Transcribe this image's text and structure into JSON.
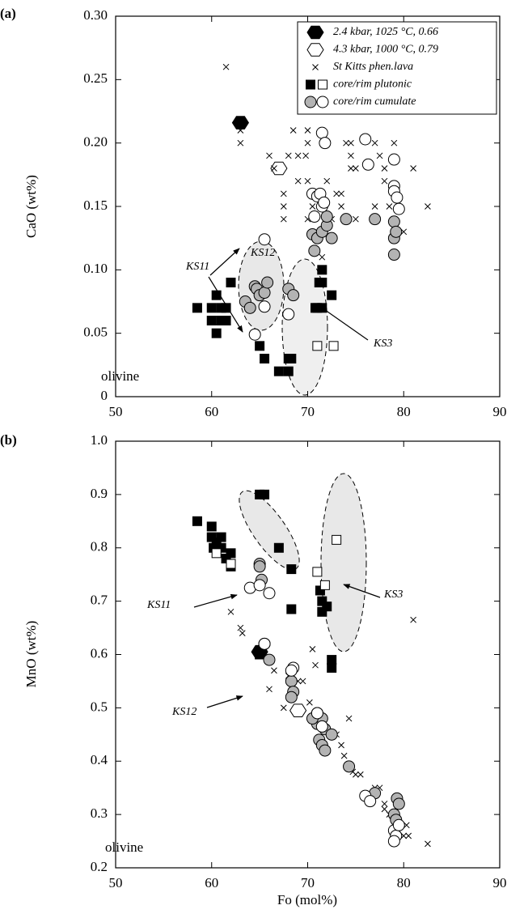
{
  "chart_data": [
    {
      "type": "scatter",
      "panel_label": "(a)",
      "ylabel": "CaO (wt%)",
      "xlim": [
        50,
        90
      ],
      "xticks": [
        50,
        60,
        70,
        80,
        90
      ],
      "ylim": [
        0,
        0.3
      ],
      "yticks": [
        0,
        0.05,
        {
          "value": 0.1,
          "label": "0.10"
        },
        0.15,
        {
          "value": 0.2,
          "label": "0.20"
        },
        0.25,
        {
          "value": 0.3,
          "label": "0.30"
        }
      ],
      "annotations": [
        "olivine",
        "KS11",
        "KS12",
        "KS3"
      ],
      "series": [
        {
          "name": "2.4 kbar, 1025 °C, 0.66",
          "marker": "hexagon",
          "fill": "#000000",
          "x": [
            63
          ],
          "values": [
            0.216
          ]
        },
        {
          "name": "4.3 kbar, 1000 °C, 0.79",
          "marker": "hexagon",
          "fill": "#ffffff",
          "x": [
            67
          ],
          "values": [
            0.18
          ]
        },
        {
          "name": "St Kitts phen.lava",
          "marker": "x",
          "fill": "#000000",
          "x": [
            61.5,
            63,
            63,
            66,
            66.5,
            67.5,
            67.5,
            67.5,
            68.5,
            68,
            69,
            69,
            70,
            70,
            69.8,
            70,
            70.3,
            70.5,
            70,
            72,
            72.5,
            73,
            73.5,
            73.5,
            74,
            74.5,
            74.5,
            74.5,
            75,
            75,
            77,
            77,
            77.5,
            78,
            78,
            78.5,
            79,
            79,
            80,
            81,
            82.5,
            71.5
          ],
          "values": [
            0.26,
            0.21,
            0.2,
            0.19,
            0.18,
            0.16,
            0.15,
            0.14,
            0.21,
            0.19,
            0.19,
            0.17,
            0.21,
            0.2,
            0.19,
            0.17,
            0.16,
            0.15,
            0.14,
            0.17,
            0.14,
            0.16,
            0.16,
            0.15,
            0.2,
            0.2,
            0.19,
            0.18,
            0.18,
            0.14,
            0.2,
            0.15,
            0.19,
            0.18,
            0.17,
            0.15,
            0.2,
            0.14,
            0.13,
            0.18,
            0.15,
            0.11
          ]
        },
        {
          "name": "core/rim plutonic",
          "parts": [
            {
              "marker": "square",
              "fill": "#000000",
              "x": [
                58.5,
                60,
                60,
                60.5,
                60.5,
                61,
                61,
                61.5,
                61.5,
                62,
                65,
                65.5,
                67,
                68,
                68.3,
                68,
                71,
                71.2,
                71.5,
                71.5,
                71.5,
                72.5,
                70.8
              ],
              "values": [
                0.07,
                0.07,
                0.06,
                0.08,
                0.05,
                0.07,
                0.06,
                0.06,
                0.07,
                0.09,
                0.04,
                0.03,
                0.02,
                0.03,
                0.03,
                0.02,
                0.07,
                0.09,
                0.1,
                0.09,
                0.07,
                0.08,
                0.07
              ]
            },
            {
              "marker": "square",
              "fill": "#ffffff",
              "x": [
                71,
                72.7
              ],
              "values": [
                0.04,
                0.04
              ]
            }
          ]
        },
        {
          "name": "core/rim cumulate",
          "parts": [
            {
              "marker": "circle",
              "fill": "#b3b3b3",
              "x": [
                63.5,
                64,
                64.5,
                64.7,
                65,
                65.5,
                65.8,
                68,
                68.5,
                70.5,
                71,
                71.5,
                72,
                72,
                72.5,
                74,
                77,
                79,
                79,
                79.2,
                79,
                70.7
              ],
              "values": [
                0.075,
                0.07,
                0.087,
                0.085,
                0.08,
                0.082,
                0.09,
                0.085,
                0.08,
                0.128,
                0.125,
                0.13,
                0.135,
                0.142,
                0.125,
                0.14,
                0.14,
                0.138,
                0.125,
                0.13,
                0.112,
                0.115
              ]
            },
            {
              "marker": "circle",
              "fill": "#ffffff",
              "x": [
                64.5,
                65.5,
                65.5,
                68,
                70.5,
                70.7,
                71,
                71.3,
                71.5,
                71.8,
                71.5,
                71.7,
                76,
                76.3,
                79,
                79,
                79,
                79.3,
                79.5
              ],
              "values": [
                0.049,
                0.071,
                0.124,
                0.065,
                0.16,
                0.142,
                0.158,
                0.16,
                0.208,
                0.2,
                0.15,
                0.153,
                0.203,
                0.183,
                0.187,
                0.166,
                0.162,
                0.157,
                0.148
              ]
            }
          ]
        }
      ]
    },
    {
      "type": "scatter",
      "panel_label": "(b)",
      "ylabel": "MnO (wt%)",
      "xlabel": "Fo (mol%)",
      "xlim": [
        50,
        90
      ],
      "xticks": [
        50,
        60,
        70,
        80,
        90
      ],
      "ylim": [
        0.2,
        1.0
      ],
      "yticks": [
        0.2,
        0.3,
        0.4,
        0.5,
        0.6,
        0.7,
        0.8,
        0.9,
        {
          "value": 1.0,
          "label": "1.0"
        }
      ],
      "annotations": [
        "olivine",
        "KS11",
        "KS12",
        "KS3"
      ],
      "series": [
        {
          "marker": "hexagon",
          "fill": "#000000",
          "x": [
            65
          ],
          "values": [
            0.605
          ]
        },
        {
          "marker": "hexagon",
          "fill": "#ffffff",
          "x": [
            69
          ],
          "values": [
            0.495
          ]
        },
        {
          "marker": "x",
          "fill": "#000000",
          "x": [
            62,
            63,
            63.2,
            66,
            66.5,
            67.5,
            68,
            68.5,
            69,
            69.5,
            70.2,
            70.5,
            70.8,
            72,
            73,
            73.5,
            73.8,
            74.3,
            74.7,
            75,
            75.5,
            77,
            77.5,
            78,
            78,
            78.5,
            80,
            80.3,
            80.5,
            81,
            82.5
          ],
          "values": [
            0.68,
            0.65,
            0.64,
            0.535,
            0.57,
            0.5,
            0.56,
            0.54,
            0.55,
            0.55,
            0.51,
            0.61,
            0.58,
            0.46,
            0.45,
            0.43,
            0.41,
            0.48,
            0.38,
            0.375,
            0.375,
            0.35,
            0.35,
            0.32,
            0.31,
            0.3,
            0.26,
            0.28,
            0.26,
            0.665,
            0.245
          ]
        },
        {
          "parts": [
            {
              "marker": "square",
              "fill": "#000000",
              "x": [
                58.5,
                60,
                60,
                60.2,
                60.5,
                61,
                61,
                61.5,
                62,
                62,
                62,
                65,
                65.5,
                67,
                68.3,
                68.3,
                71.3,
                71.5,
                71.5,
                72,
                72.5,
                72.5,
                65
              ],
              "values": [
                0.85,
                0.84,
                0.82,
                0.8,
                0.81,
                0.82,
                0.8,
                0.78,
                0.79,
                0.77,
                0.765,
                0.9,
                0.9,
                0.8,
                0.76,
                0.685,
                0.72,
                0.7,
                0.68,
                0.69,
                0.59,
                0.575,
                0.6
              ]
            },
            {
              "marker": "square",
              "fill": "#ffffff",
              "x": [
                60.5,
                62,
                71,
                71.8,
                73
              ],
              "values": [
                0.79,
                0.77,
                0.755,
                0.73,
                0.815
              ]
            }
          ]
        },
        {
          "parts": [
            {
              "marker": "circle",
              "fill": "#b3b3b3",
              "x": [
                65,
                65,
                65.2,
                65.5,
                66,
                68.3,
                68.5,
                68.3,
                71,
                71,
                71.5,
                71.8,
                71.2,
                71.5,
                71.8,
                72.5,
                74.3,
                77,
                79,
                79.3,
                79.5,
                79.2,
                70.5
              ],
              "values": [
                0.77,
                0.765,
                0.74,
                0.62,
                0.59,
                0.55,
                0.53,
                0.52,
                0.49,
                0.47,
                0.48,
                0.46,
                0.44,
                0.43,
                0.42,
                0.45,
                0.39,
                0.34,
                0.3,
                0.33,
                0.32,
                0.29,
                0.48
              ]
            },
            {
              "marker": "circle",
              "fill": "#ffffff",
              "x": [
                64,
                65,
                65.5,
                66,
                68.5,
                68.3,
                71,
                71.5,
                76,
                76.5,
                79,
                79.2,
                79,
                79.5
              ],
              "values": [
                0.725,
                0.73,
                0.62,
                0.715,
                0.575,
                0.57,
                0.49,
                0.465,
                0.335,
                0.325,
                0.27,
                0.26,
                0.25,
                0.28
              ]
            }
          ]
        }
      ]
    }
  ]
}
